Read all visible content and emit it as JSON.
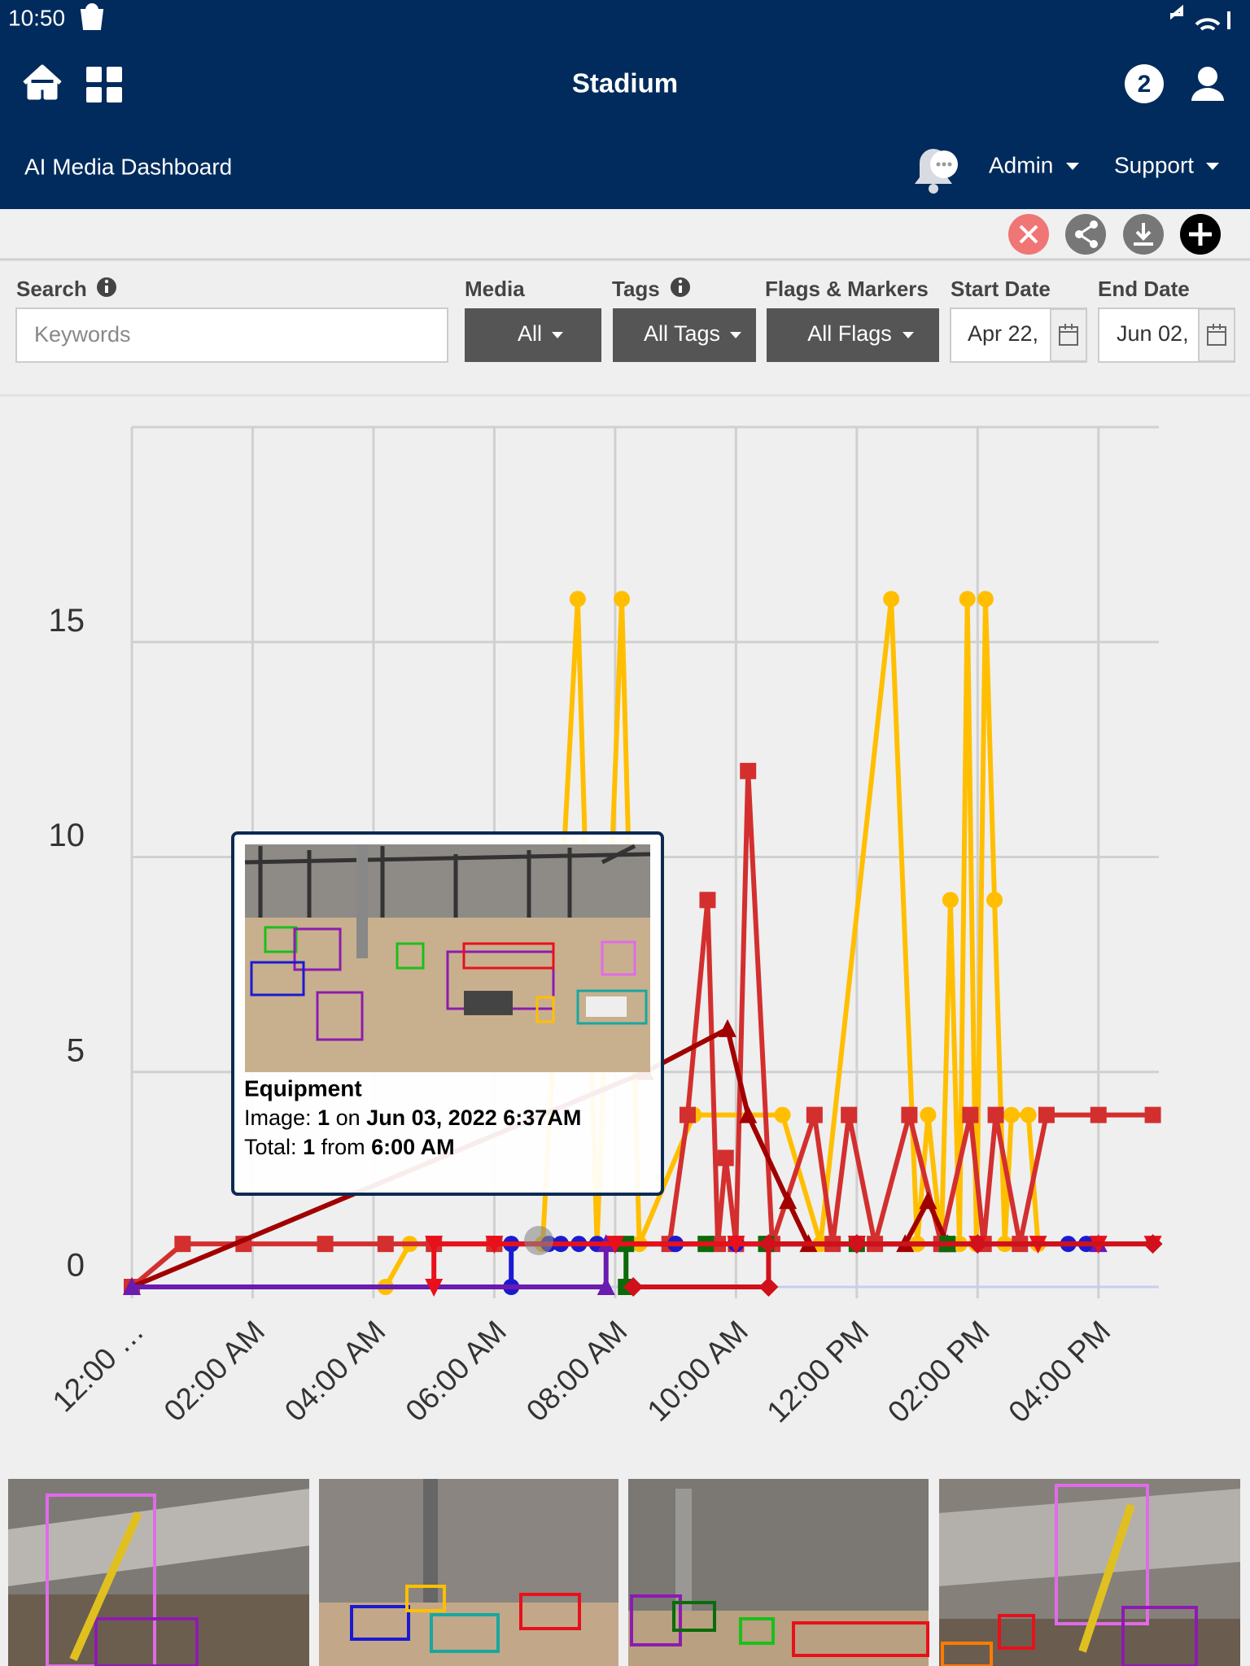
{
  "status_bar": {
    "time": "10:50"
  },
  "header": {
    "title": "Stadium",
    "badge": "2",
    "subtitle": "AI Media Dashboard",
    "admin": "Admin",
    "support": "Support"
  },
  "filters": {
    "search_label": "Search",
    "search_placeholder": "Keywords",
    "media_label": "Media",
    "media_value": "All",
    "tags_label": "Tags",
    "tags_value": "All Tags",
    "flags_label": "Flags & Markers",
    "flags_value": "All Flags",
    "start_label": "Start Date",
    "start_value": "Apr 22,",
    "end_label": "End Date",
    "end_value": "Jun 02,"
  },
  "tooltip": {
    "title": "Equipment",
    "image_prefix": "Image:",
    "image_count": "1",
    "on": "on",
    "date": "Jun 03, 2022 6:37AM",
    "total_prefix": "Total:",
    "total_count": "1",
    "from": "from",
    "time": "6:00 AM"
  },
  "chart_data": {
    "type": "line",
    "xlim": [
      0,
      17
    ],
    "ylim": [
      0,
      20
    ],
    "xticks": [
      {
        "value": 0,
        "label": "12:00 …"
      },
      {
        "value": 2,
        "label": "02:00 AM"
      },
      {
        "value": 4,
        "label": "04:00 AM"
      },
      {
        "value": 6,
        "label": "06:00 AM"
      },
      {
        "value": 8,
        "label": "08:00 AM"
      },
      {
        "value": 10,
        "label": "10:00 AM"
      },
      {
        "value": 12,
        "label": "12:00 PM"
      },
      {
        "value": 14,
        "label": "02:00 PM"
      },
      {
        "value": 16,
        "label": "04:00 PM"
      }
    ],
    "yticks": [
      0,
      5,
      10,
      15
    ],
    "grid": true,
    "series": [
      {
        "color": "#ffbf00",
        "marker": "circle",
        "x": [
          4.2,
          4.6,
          6.8,
          7.38,
          7.7,
          8.11,
          8.4,
          9.3,
          10.77,
          11.4,
          12.57,
          13.0,
          13.18,
          13.4,
          13.55,
          13.7,
          13.83,
          13.98,
          14.13,
          14.28,
          14.45,
          14.56,
          14.84,
          15.0
        ],
        "values": [
          0,
          1,
          1,
          16,
          1,
          16,
          1,
          4,
          4,
          1,
          16,
          1,
          4,
          1,
          9,
          1,
          16,
          1,
          16,
          9,
          1,
          4,
          4,
          1
        ]
      },
      {
        "color": "#d32f2f",
        "marker": "square",
        "x": [
          0,
          0.84,
          1.85,
          3.2,
          4.2,
          5.0,
          6.0,
          8.9,
          9.2,
          9.53,
          9.7,
          9.83,
          10.0,
          10.2,
          10.6,
          11.3,
          11.6,
          11.87,
          12.3,
          12.87,
          13.4,
          13.88,
          14.1,
          14.3,
          14.7,
          15.14,
          16.0,
          16.9
        ],
        "values": [
          0,
          1,
          1,
          1,
          1,
          1,
          1,
          1,
          4,
          9,
          1,
          3,
          1,
          12,
          1,
          4,
          1,
          4,
          1,
          4,
          1,
          4,
          1,
          4,
          1,
          4,
          4,
          4
        ]
      },
      {
        "color": "#a10000",
        "marker": "triangle",
        "x": [
          0,
          8.5,
          9.86,
          10.2,
          10.86,
          11.2,
          12.8,
          13.18,
          13.5
        ],
        "values": [
          0,
          5,
          6,
          4,
          2,
          1,
          1,
          2,
          1
        ]
      },
      {
        "color": "#1a1ad1",
        "marker": "circle",
        "x": [
          6.28,
          6.28,
          6.9,
          7.1,
          7.4,
          7.7,
          8.0,
          9.0,
          10.0,
          15.5,
          15.8
        ],
        "values": [
          0,
          1,
          1,
          1,
          1,
          1,
          1,
          1,
          1,
          1,
          1
        ]
      },
      {
        "color": "#6a1bb0",
        "marker": "triangle",
        "x": [
          0,
          7.85,
          7.85,
          13.5,
          16.0
        ],
        "values": [
          0,
          0,
          1,
          1,
          1
        ]
      },
      {
        "color": "#0b6b0b",
        "marker": "square",
        "x": [
          8.18,
          8.18,
          9.5,
          10.5,
          12.0,
          13.5
        ],
        "values": [
          0,
          1,
          1,
          1,
          1,
          1
        ]
      },
      {
        "color": "#e8101a",
        "marker": "triangle-down",
        "x": [
          5.0,
          5.0,
          6.0,
          8.0,
          10.0,
          12.0,
          14.0,
          15.0,
          16.0,
          16.9
        ],
        "values": [
          0,
          1,
          1,
          1,
          1,
          1,
          1,
          1,
          1,
          1
        ]
      },
      {
        "color": "#d0101a",
        "marker": "diamond",
        "x": [
          8.3,
          10.54,
          10.54,
          12.0,
          14.0,
          16.9
        ],
        "values": [
          0,
          0,
          1,
          1,
          1,
          1
        ]
      }
    ]
  }
}
